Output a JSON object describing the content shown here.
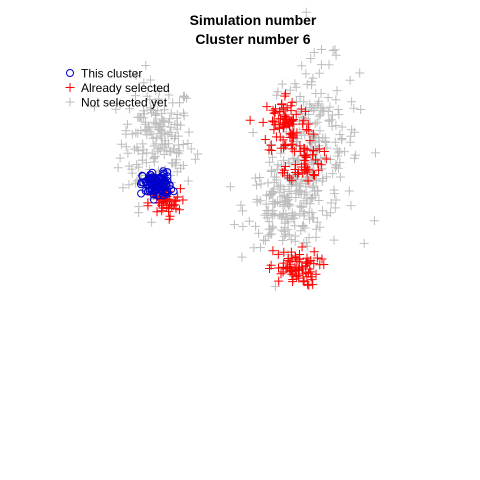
{
  "chart_data": {
    "type": "scatter",
    "title": "Simulation number",
    "subtitle": "Cluster number 6",
    "xlabel": "",
    "ylabel": "",
    "axes_visible": false,
    "grid": false,
    "legend_position": "top-left",
    "series": [
      {
        "name": "Not selected yet",
        "marker": "plus",
        "color": "#bebebe",
        "count": 560,
        "clusters": [
          [
            -2.3,
            3.0,
            0.5,
            0.85,
            190
          ],
          [
            2.1,
            3.0,
            0.6,
            1.1,
            200
          ],
          [
            1.3,
            1.2,
            0.55,
            0.55,
            170
          ]
        ]
      },
      {
        "name": "Already selected",
        "marker": "plus",
        "color": "#ff0000",
        "count": 250,
        "clusters": [
          [
            -2.1,
            1.3,
            0.22,
            0.2,
            45
          ],
          [
            1.3,
            3.5,
            0.35,
            0.45,
            80
          ],
          [
            1.8,
            2.5,
            0.25,
            0.3,
            50
          ],
          [
            1.5,
            -0.5,
            0.35,
            0.25,
            75
          ]
        ]
      },
      {
        "name": "This cluster",
        "marker": "circle",
        "color": "#0000cd",
        "count": 110,
        "clusters": [
          [
            -2.3,
            1.8,
            0.2,
            0.18,
            110
          ]
        ]
      }
    ],
    "xlim": [
      -5,
      5
    ],
    "ylim": [
      -5,
      5
    ]
  }
}
